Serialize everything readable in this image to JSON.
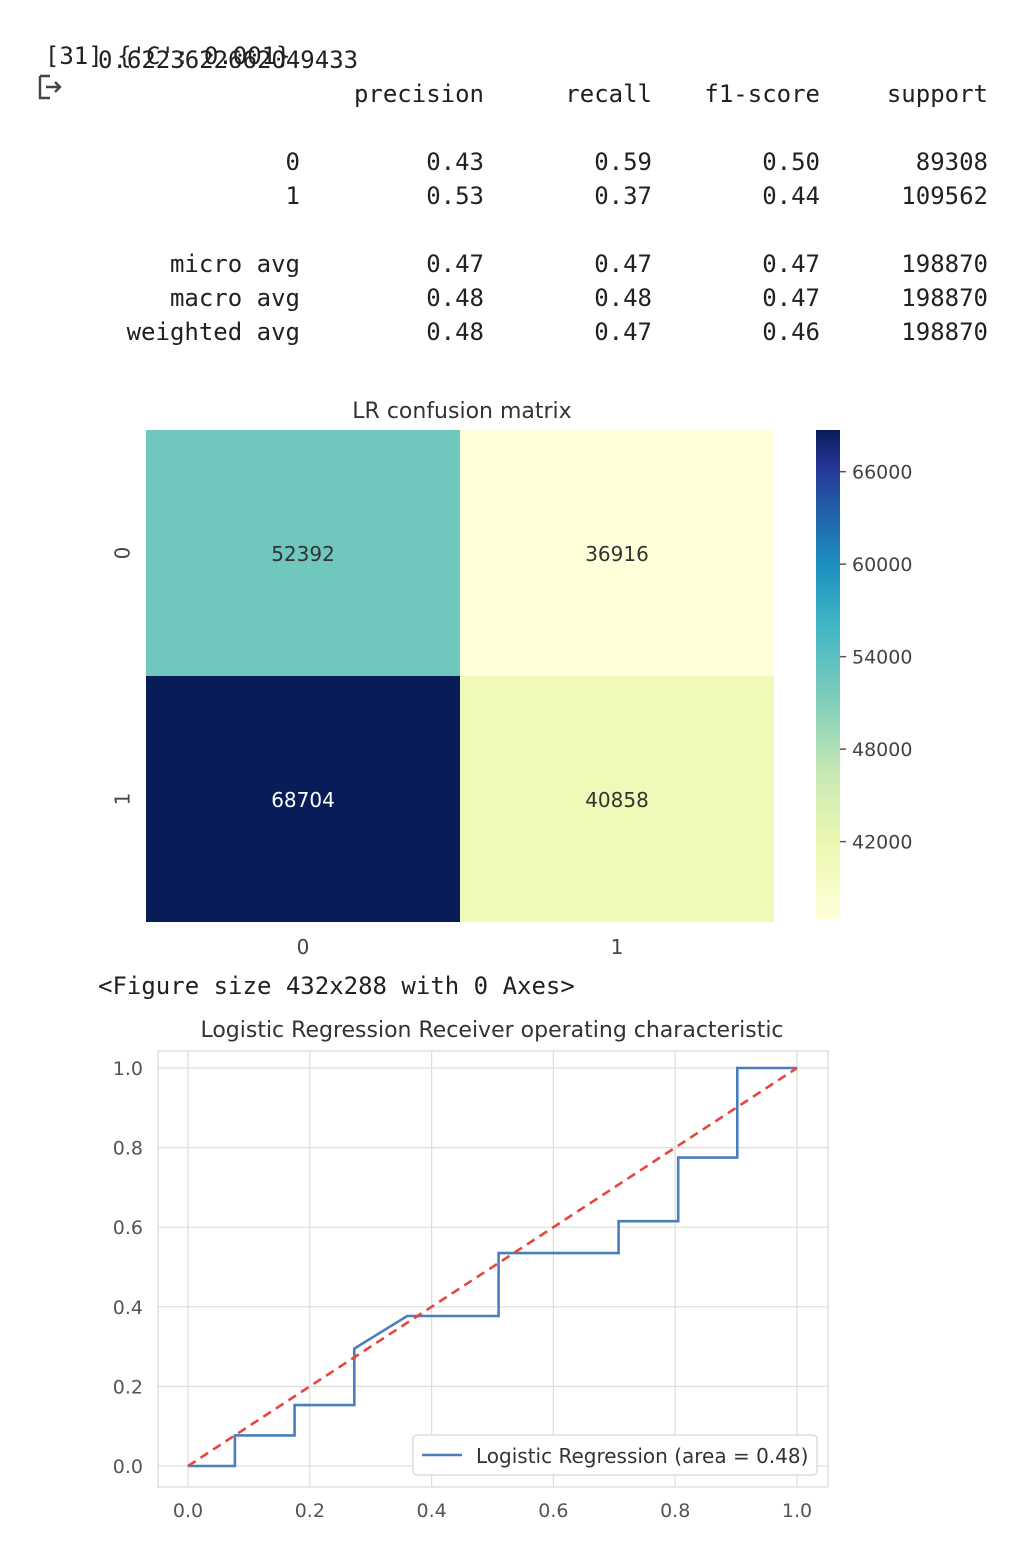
{
  "cell": {
    "prompt": "[31]",
    "line1": "{'C': 0.001}",
    "line2": "0.6223622662049433"
  },
  "report": {
    "headers": [
      "precision",
      "recall",
      "f1-score",
      "support"
    ],
    "rows": [
      {
        "label": "0",
        "values": [
          "0.43",
          "0.59",
          "0.50",
          "89308"
        ]
      },
      {
        "label": "1",
        "values": [
          "0.53",
          "0.37",
          "0.44",
          "109562"
        ]
      },
      {
        "label": "micro avg",
        "values": [
          "0.47",
          "0.47",
          "0.47",
          "198870"
        ]
      },
      {
        "label": "macro avg",
        "values": [
          "0.48",
          "0.48",
          "0.47",
          "198870"
        ]
      },
      {
        "label": "weighted avg",
        "values": [
          "0.48",
          "0.47",
          "0.46",
          "198870"
        ]
      }
    ]
  },
  "figure_note": "<Figure size 432x288 with 0 Axes>",
  "chart_data": [
    {
      "type": "heatmap",
      "title": "LR confusion matrix",
      "x_categories": [
        "0",
        "1"
      ],
      "y_categories": [
        "0",
        "1"
      ],
      "values": [
        [
          52392,
          36916
        ],
        [
          68704,
          40858
        ]
      ],
      "colorbar": {
        "ticks": [
          "66000",
          "60000",
          "54000",
          "48000",
          "42000"
        ],
        "range": [
          36916,
          68704
        ]
      },
      "colormap": "YlGnBu"
    },
    {
      "type": "line",
      "title": "Logistic Regression Receiver operating characteristic",
      "xlim": [
        0.0,
        1.0
      ],
      "ylim": [
        0.0,
        1.0
      ],
      "xticks": [
        "0.0",
        "0.2",
        "0.4",
        "0.6",
        "0.8",
        "1.0"
      ],
      "yticks": [
        "0.0",
        "0.2",
        "0.4",
        "0.6",
        "0.8",
        "1.0"
      ],
      "grid": true,
      "legend": "lower right",
      "series": [
        {
          "name": "Logistic Regression (area = 0.48)",
          "color": "#4a7fba",
          "x": [
            0.0,
            0.077,
            0.077,
            0.175,
            0.175,
            0.273,
            0.273,
            0.36,
            0.51,
            0.51,
            0.707,
            0.707,
            0.805,
            0.805,
            0.902,
            0.902,
            1.0
          ],
          "y": [
            0.0,
            0.0,
            0.077,
            0.077,
            0.153,
            0.153,
            0.295,
            0.377,
            0.377,
            0.535,
            0.535,
            0.615,
            0.615,
            0.775,
            0.775,
            1.0,
            1.0
          ]
        },
        {
          "name": "",
          "color": "#e8453c",
          "dashed": true,
          "x": [
            0.0,
            1.0
          ],
          "y": [
            0.0,
            1.0
          ]
        }
      ]
    }
  ]
}
